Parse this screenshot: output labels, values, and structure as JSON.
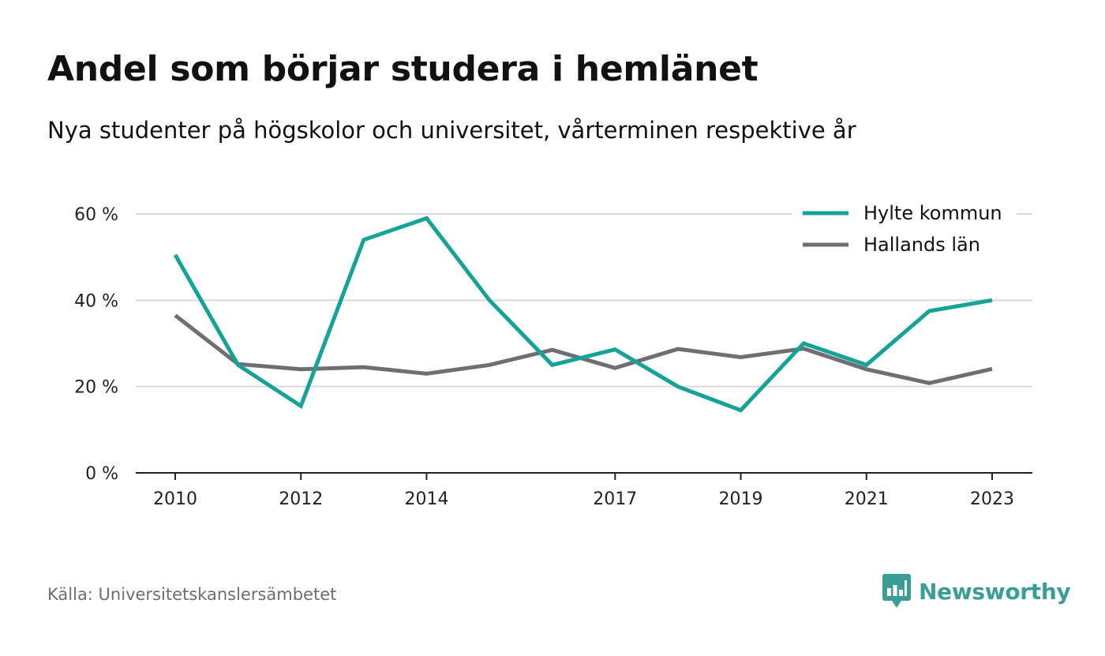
{
  "title": "Andel som börjar studera i hemlänet",
  "subtitle": "Nya studenter på högskolor och universitet, vårterminen respektive år",
  "source": "Källa: Universitetskanslersämbetet",
  "brand": {
    "name": "Newsworthy",
    "icon": "newsworthy-logo-icon",
    "color": "#3a9d96"
  },
  "chart_data": {
    "type": "line",
    "title": "Andel som börjar studera i hemlänet",
    "subtitle": "Nya studenter på högskolor och universitet, vårterminen respektive år",
    "x": [
      2010,
      2011,
      2012,
      2013,
      2014,
      2015,
      2016,
      2017,
      2018,
      2019,
      2020,
      2021,
      2022,
      2023
    ],
    "x_tick_labels": [
      "2010",
      "2012",
      "2014",
      "2017",
      "2019",
      "2021",
      "2023"
    ],
    "x_tick_values": [
      2010,
      2012,
      2014,
      2017,
      2019,
      2021,
      2023
    ],
    "y_ticks": [
      0,
      20,
      40,
      60
    ],
    "y_tick_labels": [
      "0 %",
      "20 %",
      "40 %",
      "60 %"
    ],
    "ylim": [
      0,
      60
    ],
    "grid": "horizontal",
    "legend_position": "top-right",
    "series": [
      {
        "name": "Hylte kommun",
        "color": "#14a396",
        "values": [
          50.5,
          25.0,
          15.5,
          54.0,
          59.0,
          40.0,
          25.0,
          28.6,
          20.0,
          14.5,
          30.0,
          25.0,
          37.5,
          40.0
        ]
      },
      {
        "name": "Hallands län",
        "color": "#6f6e73",
        "values": [
          36.5,
          25.2,
          24.0,
          24.5,
          23.0,
          25.0,
          28.5,
          24.3,
          28.7,
          26.8,
          28.8,
          24.0,
          20.8,
          24.1
        ]
      }
    ]
  }
}
